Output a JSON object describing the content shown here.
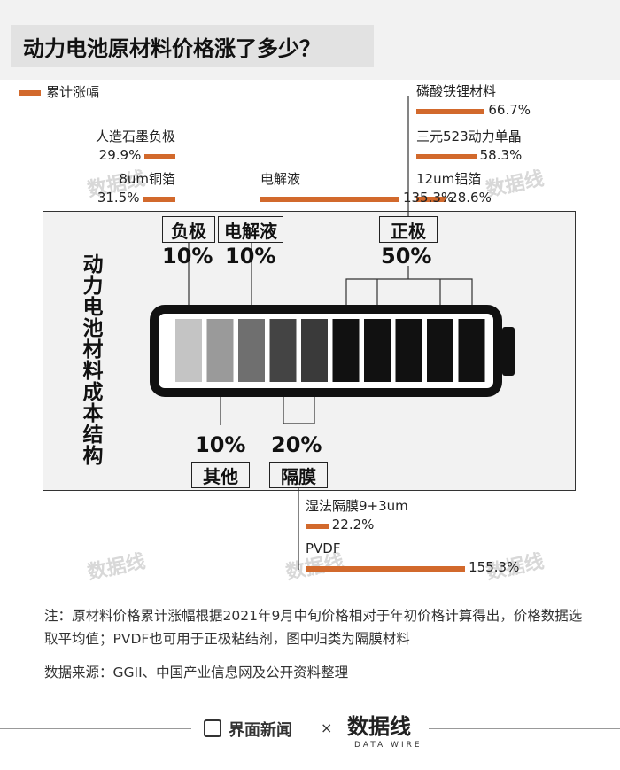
{
  "title": "动力电池原材料价格涨了多少？",
  "legend_label": "累计涨幅",
  "bar_color": "#d2692c",
  "battery_axis_label": "动力电池材料成本结构",
  "components": {
    "anode": {
      "label": "负极",
      "share": "10%"
    },
    "electrolyte": {
      "label": "电解液",
      "share": "10%"
    },
    "cathode": {
      "label": "正极",
      "share": "50%"
    },
    "other": {
      "label": "其他",
      "share": "10%"
    },
    "separator": {
      "label": "隔膜",
      "share": "20%"
    }
  },
  "chart_data": {
    "type": "bar",
    "unit": "%",
    "series": [
      {
        "name": "累计涨幅",
        "items": [
          {
            "label": "磷酸铁锂材料",
            "value": 66.7,
            "display": "66.7%"
          },
          {
            "label": "三元523动力单晶",
            "value": 58.3,
            "display": "58.3%"
          },
          {
            "label": "12um铝箔",
            "value": 28.6,
            "display": "28.6%"
          },
          {
            "label": "人造石墨负极",
            "value": 29.9,
            "display": "29.9%"
          },
          {
            "label": "8um铜箔",
            "value": 31.5,
            "display": "31.5%"
          },
          {
            "label": "电解液",
            "value": 135.3,
            "display": "135.3%"
          },
          {
            "label": "湿法隔膜9+3um",
            "value": 22.2,
            "display": "22.2%"
          },
          {
            "label": "PVDF",
            "value": 155.3,
            "display": "155.3%"
          }
        ]
      }
    ],
    "battery_cells": {
      "anode": 1,
      "electrolyte": 1,
      "other": 1,
      "separator": 2,
      "cathode": 5
    }
  },
  "notes": {
    "note": "注：原材料价格累计涨幅根据2021年9月中旬价格相对于年初价格计算得出，价格数据选取平均值；PVDF也可用于正极粘结剂，图中归类为隔膜材料",
    "source": "数据来源：GGII、中国产业信息网及公开资料整理"
  },
  "footer": {
    "brand": "界面新闻",
    "times": "×",
    "partner": "数据线",
    "partner_sub": "DATA WIRE"
  },
  "watermark": "数据线"
}
